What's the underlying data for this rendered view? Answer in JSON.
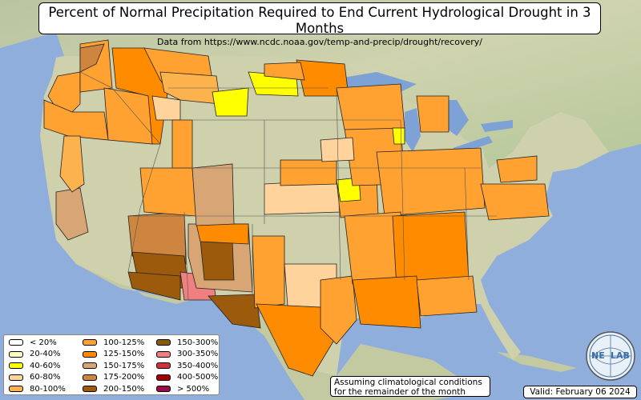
{
  "header": {
    "title": "Percent of Normal Precipitation Required to End Current Hydrological Drought in 3 Months",
    "subtitle": "Data from https://www.ncdc.noaa.gov/temp-and-precip/drought/recovery/"
  },
  "legend": {
    "items": [
      {
        "label": "< 20%",
        "color": "#ffffff"
      },
      {
        "label": "20-40%",
        "color": "#ffffc0"
      },
      {
        "label": "40-60%",
        "color": "#ffff00"
      },
      {
        "label": "60-80%",
        "color": "#ffd39b"
      },
      {
        "label": "80-100%",
        "color": "#fcb34d"
      },
      {
        "label": "100-125%",
        "color": "#ffa231"
      },
      {
        "label": "125-150%",
        "color": "#ff8c00"
      },
      {
        "label": "150-175%",
        "color": "#d8a675"
      },
      {
        "label": "175-200%",
        "color": "#cd853f"
      },
      {
        "label": "200-150%",
        "color": "#9b5a0c"
      },
      {
        "label": "150-300%",
        "color": "#8b5a06"
      },
      {
        "label": "300-350%",
        "color": "#f08080"
      },
      {
        "label": "350-400%",
        "color": "#cd3333"
      },
      {
        "label": "400-500%",
        "color": "#a40000"
      },
      {
        "label": "> 500%",
        "color": "#9b0a4b"
      }
    ]
  },
  "footer": {
    "assumption_line1": "Assuming climatological conditions",
    "assumption_line2": "for the remainder of the month",
    "valid": "Valid: February 06 2024"
  },
  "logo": {
    "text_left": "NE",
    "text_right": "LAB",
    "icon": "nexlab-globe-logo"
  },
  "colors": {
    "ocean": "#90aedb",
    "land": "#c9cfa6",
    "lake": "#7fa2d6"
  }
}
